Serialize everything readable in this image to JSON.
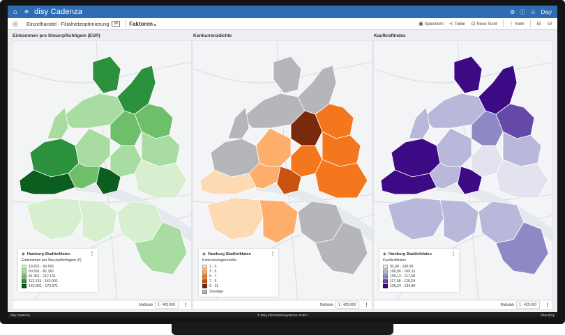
{
  "app": {
    "title": "disy Cadenza"
  },
  "topbar": {
    "user": "Disy"
  },
  "toolbar": {
    "project": "Einzelhandel - Filialnetzoptimierung",
    "badge": "v6",
    "factors": "Faktoren",
    "actions": {
      "save": "Speichern",
      "share": "Teilen",
      "new_view": "Neue Sicht",
      "more": "Mehr"
    }
  },
  "panels": [
    {
      "title": "Einkommen pro Steuerpflichtigem (EUR)",
      "legend": {
        "layer": "Hamburg Stadtteildaten",
        "subtitle": "Einkommen pro Steuerpflichtigem (€)",
        "classes": [
          {
            "label": "19.821 - 50.591",
            "color": "#d7efcf"
          },
          {
            "label": "50.591 - 81.361",
            "color": "#a8dca0"
          },
          {
            "label": "81.361 - 112.131",
            "color": "#6fbf6a"
          },
          {
            "label": "112.131 - 142.901",
            "color": "#2c913d"
          },
          {
            "label": "142.901 - 173.671",
            "color": "#0c5d20"
          }
        ]
      },
      "scale_label": "Maßstab",
      "scale_value": "1 : 425.000"
    },
    {
      "title": "Konkurrenzdichte",
      "legend": {
        "layer": "Hamburg Stadtteildaten",
        "subtitle": "Konkurrenzgeschäfte",
        "classes": [
          {
            "label": "1 - 3",
            "color": "#fdd9b4"
          },
          {
            "label": "3 - 5",
            "color": "#fdae6b"
          },
          {
            "label": "5 - 7",
            "color": "#f4771e"
          },
          {
            "label": "7 - 9",
            "color": "#c9520e"
          },
          {
            "label": "9 - 11",
            "color": "#7a2a0c"
          },
          {
            "label": "Sonstige",
            "color": "#b4b6b9"
          }
        ]
      },
      "scale_label": "Maßstab",
      "scale_value": "1 : 425.000"
    },
    {
      "title": "Kaufkraftindex",
      "legend": {
        "layer": "Hamburg Stadtteildaten",
        "subtitle": "Kaufkraftindex",
        "classes": [
          {
            "label": "92,00 - 100,56",
            "color": "#e3e3f0"
          },
          {
            "label": "100,56 - 109,12",
            "color": "#b9b8db"
          },
          {
            "label": "109,12 - 117,68",
            "color": "#8e89c4"
          },
          {
            "label": "117,68 - 126,24",
            "color": "#6549a8"
          },
          {
            "label": "126,24 - 134,80",
            "color": "#3d0a86"
          }
        ]
      },
      "scale_label": "Maßstab",
      "scale_value": "1 : 425.000"
    }
  ],
  "statusbar": {
    "left": "disy Cadenza",
    "center": "© Disy Informationssysteme GmbH",
    "right": "Über Disy"
  },
  "colors": {
    "brand": "#2e6cb4"
  }
}
